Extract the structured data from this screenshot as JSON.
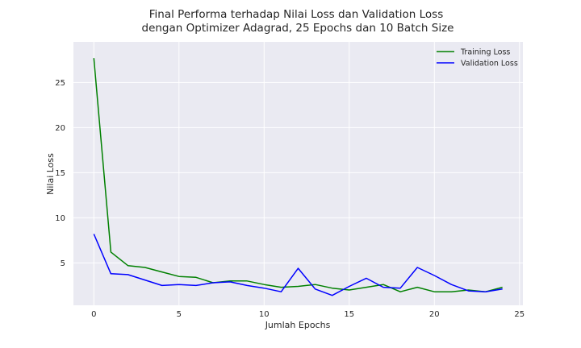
{
  "chart_data": {
    "type": "line",
    "title_lines": [
      "Final Performa terhadap Nilai Loss dan Validation Loss",
      "dengan Optimizer Adagrad, 25 Epochs dan 10 Batch Size"
    ],
    "xlabel": "Jumlah Epochs",
    "ylabel": "Nilai Loss",
    "xlim": [
      -1.2,
      25.2
    ],
    "ylim": [
      0.3,
      29.5
    ],
    "xticks": [
      0,
      5,
      10,
      15,
      20,
      25
    ],
    "yticks": [
      5,
      10,
      15,
      20,
      25
    ],
    "grid": true,
    "legend_position": "top-right",
    "x": [
      0,
      1,
      2,
      3,
      4,
      5,
      6,
      7,
      8,
      9,
      10,
      11,
      12,
      13,
      14,
      15,
      16,
      17,
      18,
      19,
      20,
      21,
      22,
      23,
      24
    ],
    "series": [
      {
        "name": "Training Loss",
        "color": "#008000",
        "values": [
          27.7,
          6.2,
          4.7,
          4.5,
          4.0,
          3.5,
          3.4,
          2.8,
          3.0,
          3.0,
          2.6,
          2.3,
          2.4,
          2.6,
          2.2,
          2.0,
          2.3,
          2.6,
          1.8,
          2.3,
          1.8,
          1.8,
          2.0,
          1.8,
          2.3
        ]
      },
      {
        "name": "Validation Loss",
        "color": "#0000ff",
        "values": [
          8.2,
          3.8,
          3.7,
          3.1,
          2.5,
          2.6,
          2.5,
          2.8,
          2.9,
          2.5,
          2.2,
          1.8,
          4.4,
          2.1,
          1.4,
          2.4,
          3.3,
          2.3,
          2.2,
          4.5,
          3.6,
          2.6,
          1.9,
          1.8,
          2.1
        ]
      }
    ]
  },
  "style": {
    "axes_background": "#eaeaf2",
    "grid_color": "#ffffff",
    "text_color": "#262626"
  }
}
